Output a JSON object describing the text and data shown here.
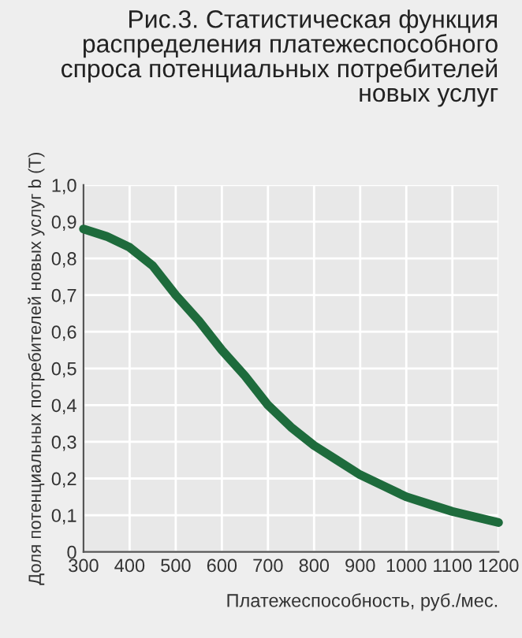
{
  "chart_data": {
    "type": "line",
    "title": "Рис.3. Статистическая функция распределения платежеспособного спроса потенциальных потребителей новых услуг",
    "xlabel": "Платежеспособность, руб./мес.",
    "ylabel": "Доля потенциальных потребителей новых услуг b (T)",
    "x": [
      300,
      350,
      400,
      450,
      500,
      550,
      600,
      650,
      700,
      750,
      800,
      850,
      900,
      950,
      1000,
      1050,
      1100,
      1150,
      1200
    ],
    "series": [
      {
        "color": "#1e6b3c",
        "values": [
          0.88,
          0.86,
          0.83,
          0.78,
          0.7,
          0.63,
          0.55,
          0.48,
          0.4,
          0.34,
          0.29,
          0.25,
          0.21,
          0.18,
          0.15,
          0.13,
          0.11,
          0.095,
          0.08
        ]
      }
    ],
    "xlim": [
      300,
      1200
    ],
    "ylim": [
      0,
      1
    ],
    "xticks": [
      300,
      400,
      500,
      600,
      700,
      800,
      900,
      1000,
      1100,
      1200
    ],
    "yticks": [
      {
        "value": 0,
        "label": "0"
      },
      {
        "value": 0.1,
        "label": "0,1"
      },
      {
        "value": 0.2,
        "label": "0,2"
      },
      {
        "value": 0.3,
        "label": "0,3"
      },
      {
        "value": 0.4,
        "label": "0,4"
      },
      {
        "value": 0.5,
        "label": "0,5"
      },
      {
        "value": 0.6,
        "label": "0,6"
      },
      {
        "value": 0.7,
        "label": "0,7"
      },
      {
        "value": 0.8,
        "label": "0,8"
      },
      {
        "value": 0.9,
        "label": "0,9"
      },
      {
        "value": 1,
        "label": "1,0"
      }
    ],
    "grid": true,
    "line_style": "solid",
    "marker": "none"
  }
}
